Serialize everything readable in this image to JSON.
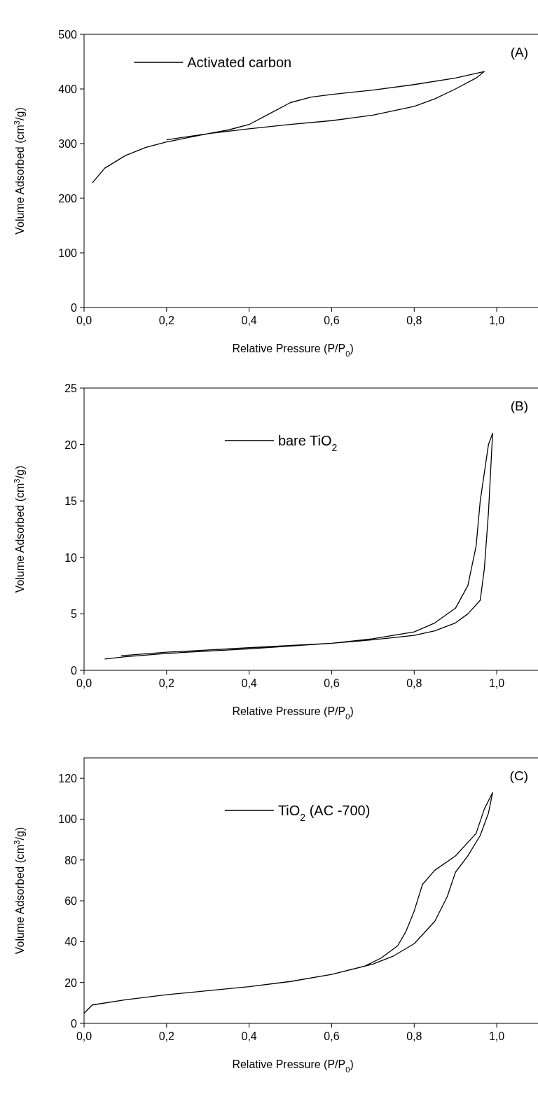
{
  "chart_data": [
    {
      "type": "line",
      "xlabel": "Relative Pressure (P/P$_{0}$)",
      "ylabel": "Volume Adsorbed (cm$^{3}$/g)",
      "annotations": [
        "(A)"
      ],
      "legend": "top left",
      "xlim": [
        0,
        1.1
      ],
      "ylim": [
        0,
        500
      ],
      "xticks": [
        {
          "value": 0,
          "label": "0,0"
        },
        {
          "value": 0.2,
          "label": "0,2"
        },
        {
          "value": 0.4,
          "label": "0,4"
        },
        {
          "value": 0.6,
          "label": "0,6"
        },
        {
          "value": 0.8,
          "label": "0,8"
        },
        {
          "value": 1,
          "label": "1,0"
        }
      ],
      "yticks": [
        0,
        100,
        200,
        300,
        400,
        500
      ],
      "series": [
        {
          "name": "Activated carbon",
          "color": "#000000",
          "x": [
            0.02,
            0.05,
            0.1,
            0.15,
            0.2,
            0.3,
            0.4,
            0.5,
            0.6,
            0.7,
            0.8,
            0.85,
            0.9,
            0.95,
            0.97,
            0.9,
            0.8,
            0.7,
            0.6,
            0.55,
            0.5,
            0.45,
            0.4,
            0.35,
            0.3,
            0.2
          ],
          "values": [
            228,
            255,
            278,
            293,
            303,
            318,
            327,
            335,
            342,
            352,
            368,
            382,
            400,
            420,
            432,
            420,
            408,
            398,
            390,
            385,
            375,
            355,
            335,
            325,
            318,
            307
          ]
        }
      ]
    },
    {
      "type": "line",
      "xlabel": "Relative Pressure (P/P$_{0}$)",
      "ylabel": "Volume Adsorbed (cm$^{3}$/g)",
      "annotations": [
        "(B)"
      ],
      "legend": "top",
      "xlim": [
        0,
        1.1
      ],
      "ylim": [
        0,
        25
      ],
      "xticks": [
        {
          "value": 0,
          "label": "0,0"
        },
        {
          "value": 0.2,
          "label": "0,2"
        },
        {
          "value": 0.4,
          "label": "0,4"
        },
        {
          "value": 0.6,
          "label": "0,6"
        },
        {
          "value": 0.8,
          "label": "0,8"
        },
        {
          "value": 1,
          "label": "1,0"
        }
      ],
      "yticks": [
        0,
        5,
        10,
        15,
        20,
        25
      ],
      "series": [
        {
          "name": "bare TiO$_{2}$",
          "color": "#000000",
          "x": [
            0.05,
            0.1,
            0.2,
            0.4,
            0.6,
            0.7,
            0.8,
            0.85,
            0.9,
            0.93,
            0.96,
            0.97,
            0.98,
            0.99,
            0.98,
            0.96,
            0.95,
            0.93,
            0.9,
            0.85,
            0.8,
            0.7,
            0.6,
            0.4,
            0.2,
            0.09
          ],
          "values": [
            1.0,
            1.2,
            1.5,
            1.9,
            2.4,
            2.7,
            3.1,
            3.5,
            4.2,
            5.0,
            6.2,
            9,
            14,
            21,
            20,
            15,
            11,
            7.5,
            5.5,
            4.2,
            3.4,
            2.8,
            2.4,
            2.0,
            1.6,
            1.3
          ]
        }
      ]
    },
    {
      "type": "line",
      "xlabel": "Relative Pressure (P/P$_{0}$)",
      "ylabel": "Volume Adsorbed (cm$^{3}$/g)",
      "annotations": [
        "(C)"
      ],
      "legend": "top",
      "xlim": [
        0,
        1.1
      ],
      "ylim": [
        0,
        130
      ],
      "xticks": [
        {
          "value": 0,
          "label": "0,0"
        },
        {
          "value": 0.2,
          "label": "0,2"
        },
        {
          "value": 0.4,
          "label": "0,4"
        },
        {
          "value": 0.6,
          "label": "0,6"
        },
        {
          "value": 0.8,
          "label": "0,8"
        },
        {
          "value": 1,
          "label": "1,0"
        }
      ],
      "yticks": [
        0,
        20,
        40,
        60,
        80,
        100,
        120
      ],
      "series": [
        {
          "name": "TiO$_{2}$ (AC -700)",
          "color": "#000000",
          "x": [
            0,
            0.02,
            0.1,
            0.2,
            0.3,
            0.4,
            0.5,
            0.6,
            0.7,
            0.75,
            0.8,
            0.85,
            0.88,
            0.9,
            0.93,
            0.96,
            0.98,
            0.99,
            0.97,
            0.95,
            0.9,
            0.85,
            0.82,
            0.8,
            0.78,
            0.76,
            0.72,
            0.68,
            0.6
          ],
          "values": [
            5,
            9,
            11.5,
            14,
            16,
            18,
            20.5,
            24,
            29,
            33,
            39,
            50,
            62,
            74,
            82,
            92,
            103,
            113,
            105,
            93,
            82,
            75,
            68,
            55,
            45,
            38,
            32,
            28,
            24
          ]
        }
      ]
    }
  ]
}
